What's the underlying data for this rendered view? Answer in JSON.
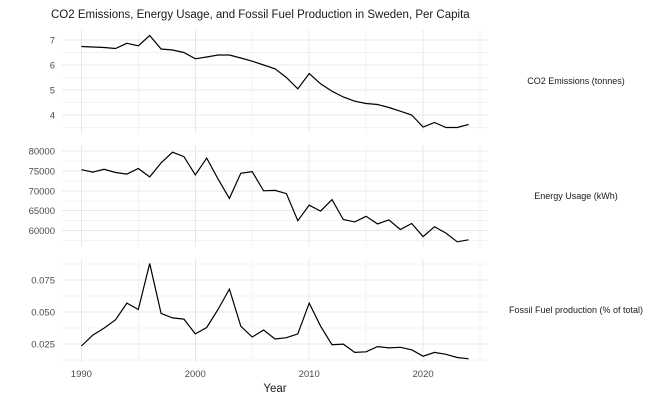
{
  "title": "CO2 Emissions, Energy Usage, and Fossil Fuel Production in Sweden, Per Capita",
  "colors": {
    "background": "#ffffff",
    "line": "#000000",
    "grid_major": "#e8e8e8",
    "grid_minor": "#f3f3f3",
    "axis_text": "#4d4d4d",
    "title_text": "#1a1a1a"
  },
  "x_axis": {
    "label": "Year",
    "lim": [
      1988.3,
      2025.7
    ],
    "tick_values": [
      1990,
      2000,
      2010,
      2020
    ],
    "tick_labels": [
      "1990",
      "2000",
      "2010",
      "2020"
    ],
    "minor_values": [
      1995,
      2005,
      2015,
      2025
    ]
  },
  "chart_data": [
    {
      "type": "line",
      "id": "co2-emissions",
      "label": "CO2 Emissions (tonnes)",
      "series_color": "#000000",
      "x": [
        1990,
        1991,
        1992,
        1993,
        1994,
        1995,
        1996,
        1997,
        1998,
        1999,
        2000,
        2001,
        2002,
        2003,
        2004,
        2005,
        2006,
        2007,
        2008,
        2009,
        2010,
        2011,
        2012,
        2013,
        2014,
        2015,
        2016,
        2017,
        2018,
        2019,
        2020,
        2021,
        2022,
        2023,
        2024
      ],
      "values": [
        6.74,
        6.72,
        6.7,
        6.66,
        6.87,
        6.77,
        7.18,
        6.64,
        6.6,
        6.5,
        6.25,
        6.32,
        6.4,
        6.4,
        6.28,
        6.15,
        6.0,
        5.85,
        5.5,
        5.05,
        5.66,
        5.25,
        4.95,
        4.72,
        4.55,
        4.46,
        4.42,
        4.3,
        4.15,
        4.0,
        3.52,
        3.7,
        3.5,
        3.5,
        3.62
      ],
      "ylim": [
        3.28,
        7.4
      ],
      "ytick_values": [
        7,
        6,
        5,
        4
      ],
      "ytick_labels": [
        "7",
        "6",
        "5",
        "4"
      ],
      "ytick_minor": [
        6.5,
        5.5,
        4.5,
        3.5
      ]
    },
    {
      "type": "line",
      "id": "energy-usage",
      "label": "Energy Usage (kWh)",
      "series_color": "#000000",
      "x": [
        1990,
        1991,
        1992,
        1993,
        1994,
        1995,
        1996,
        1997,
        1998,
        1999,
        2000,
        2001,
        2002,
        2003,
        2004,
        2005,
        2006,
        2007,
        2008,
        2009,
        2010,
        2011,
        2012,
        2013,
        2014,
        2015,
        2016,
        2017,
        2018,
        2019,
        2020,
        2021,
        2022,
        2023,
        2024
      ],
      "values": [
        75300,
        74700,
        75400,
        74600,
        74200,
        75600,
        73500,
        77000,
        79700,
        78600,
        74000,
        78200,
        73000,
        68100,
        74400,
        74800,
        70000,
        70100,
        69300,
        62500,
        66400,
        64900,
        67800,
        62800,
        62200,
        63600,
        61700,
        62700,
        60300,
        61800,
        58500,
        61000,
        59400,
        57200,
        57700
      ],
      "ylim": [
        55900,
        81500
      ],
      "ytick_values": [
        80000,
        75000,
        70000,
        65000,
        60000
      ],
      "ytick_labels": [
        "80000",
        "75000",
        "70000",
        "65000",
        "60000"
      ],
      "ytick_minor": [
        77500,
        72500,
        67500,
        62500,
        57500
      ]
    },
    {
      "type": "line",
      "id": "fossil-fuel-production",
      "label": "Fossil Fuel production (% of total)",
      "series_color": "#000000",
      "x": [
        1990,
        1991,
        1992,
        1993,
        1994,
        1995,
        1996,
        1997,
        1998,
        1999,
        2000,
        2001,
        2002,
        2003,
        2004,
        2005,
        2006,
        2007,
        2008,
        2009,
        2010,
        2011,
        2012,
        2013,
        2014,
        2015,
        2016,
        2017,
        2018,
        2019,
        2020,
        2021,
        2022,
        2023,
        2024
      ],
      "values": [
        0.0235,
        0.032,
        0.0375,
        0.044,
        0.057,
        0.052,
        0.088,
        0.049,
        0.0455,
        0.0445,
        0.033,
        0.038,
        0.052,
        0.068,
        0.039,
        0.0305,
        0.036,
        0.029,
        0.03,
        0.033,
        0.057,
        0.039,
        0.0245,
        0.025,
        0.0185,
        0.019,
        0.023,
        0.022,
        0.0225,
        0.0205,
        0.0155,
        0.0185,
        0.017,
        0.0145,
        0.0135
      ],
      "ylim": [
        0.011,
        0.0915
      ],
      "ytick_values": [
        0.075,
        0.05,
        0.025
      ],
      "ytick_labels": [
        "0.075",
        "0.050",
        "0.025"
      ],
      "ytick_minor": [
        0.0875,
        0.0625,
        0.0375,
        0.0125
      ]
    }
  ]
}
